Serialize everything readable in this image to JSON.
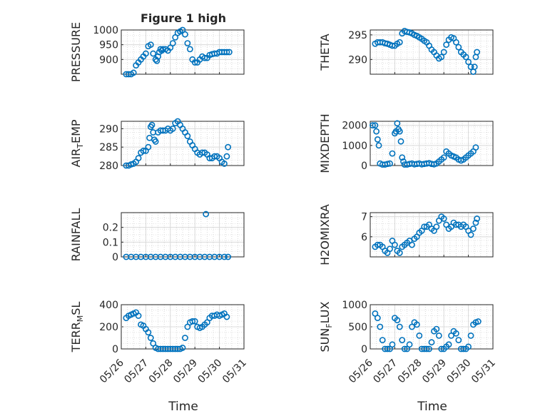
{
  "title": "Figure 1 high",
  "xlabel": "Time",
  "marker_color": "#0072BD",
  "x_ticks": [
    "05/26",
    "05/27",
    "05/28",
    "05/29",
    "05/30",
    "05/31"
  ],
  "chart_data": [
    {
      "type": "scatter",
      "ylabel": "PRESSURE",
      "ylim": [
        850,
        1000
      ],
      "yticks": [
        "900",
        "950",
        "1000"
      ],
      "x": [
        0.2,
        0.3,
        0.4,
        0.5,
        0.6,
        0.7,
        0.8,
        0.9,
        1.0,
        1.1,
        1.2,
        1.3,
        1.4,
        1.45,
        1.5,
        1.55,
        1.6,
        1.65,
        1.7,
        1.8,
        1.9,
        2.0,
        2.1,
        2.2,
        2.3,
        2.4,
        2.5,
        2.6,
        2.7,
        2.8,
        2.9,
        3.0,
        3.1,
        3.2,
        3.3,
        3.4,
        3.5,
        3.6,
        3.7,
        3.8,
        3.9,
        4.0,
        4.1,
        4.2,
        4.3,
        4.4
      ],
      "y": [
        850,
        850,
        850,
        855,
        880,
        890,
        900,
        910,
        920,
        945,
        950,
        920,
        900,
        895,
        910,
        925,
        935,
        930,
        935,
        935,
        930,
        940,
        955,
        975,
        990,
        995,
        1000,
        985,
        955,
        935,
        900,
        890,
        890,
        900,
        910,
        905,
        905,
        915,
        918,
        920,
        920,
        925,
        925,
        925,
        925,
        925
      ]
    },
    {
      "type": "scatter",
      "ylabel": "THETA",
      "ylim": [
        287,
        296
      ],
      "yticks": [
        "290",
        "295"
      ],
      "x": [
        0.2,
        0.3,
        0.4,
        0.5,
        0.6,
        0.7,
        0.8,
        0.9,
        1.0,
        1.1,
        1.2,
        1.3,
        1.4,
        1.5,
        1.6,
        1.7,
        1.8,
        1.9,
        2.0,
        2.1,
        2.2,
        2.3,
        2.4,
        2.5,
        2.6,
        2.7,
        2.8,
        2.9,
        3.0,
        3.1,
        3.2,
        3.3,
        3.4,
        3.5,
        3.6,
        3.7,
        3.8,
        3.9,
        4.0,
        4.1,
        4.2,
        4.25,
        4.3,
        4.35
      ],
      "y": [
        293.2,
        293.5,
        293.5,
        293.5,
        293.3,
        293.2,
        293,
        292.8,
        292.8,
        293.2,
        293.5,
        295.3,
        295.8,
        295.6,
        295.5,
        295.3,
        295,
        294.8,
        294.5,
        294.2,
        293.8,
        293.5,
        292.8,
        292,
        291.5,
        290.8,
        290.2,
        290.5,
        291.5,
        293,
        294,
        294.5,
        294.3,
        293.5,
        292.5,
        291.5,
        291,
        290.5,
        289.5,
        288.5,
        287.5,
        288.5,
        290.5,
        291.5
      ]
    },
    {
      "type": "scatter",
      "ylabel": "AIR_TEMP",
      "ylim": [
        280,
        292
      ],
      "yticks": [
        "280",
        "285",
        "290"
      ],
      "x": [
        0.2,
        0.3,
        0.4,
        0.5,
        0.6,
        0.7,
        0.8,
        0.9,
        1.0,
        1.1,
        1.15,
        1.2,
        1.25,
        1.3,
        1.35,
        1.4,
        1.5,
        1.6,
        1.7,
        1.8,
        1.9,
        2.0,
        2.1,
        2.2,
        2.3,
        2.4,
        2.5,
        2.6,
        2.7,
        2.8,
        2.9,
        3.0,
        3.1,
        3.2,
        3.3,
        3.4,
        3.5,
        3.6,
        3.7,
        3.8,
        3.9,
        4.0,
        4.1,
        4.2,
        4.3,
        4.35
      ],
      "y": [
        280,
        280,
        280.3,
        280.5,
        281,
        282,
        283.5,
        284,
        284,
        285,
        287.5,
        290.5,
        291,
        289,
        287,
        286.5,
        289,
        289.5,
        289.5,
        289.5,
        290,
        289.5,
        290,
        291.5,
        292,
        291,
        290,
        289,
        288,
        286.5,
        285.5,
        284.5,
        283.5,
        283,
        283.5,
        283.5,
        283,
        282,
        282,
        282.5,
        282.5,
        282,
        281,
        280.5,
        282.5,
        285
      ]
    },
    {
      "type": "scatter",
      "ylabel": "MIXDEPTH",
      "ylim": [
        0,
        2200
      ],
      "yticks": [
        "0",
        "1000",
        "2000"
      ],
      "x": [
        0.1,
        0.2,
        0.25,
        0.3,
        0.35,
        0.4,
        0.5,
        0.6,
        0.7,
        0.8,
        0.9,
        1.0,
        1.05,
        1.1,
        1.15,
        1.2,
        1.25,
        1.3,
        1.35,
        1.4,
        1.5,
        1.6,
        1.7,
        1.8,
        1.9,
        2.0,
        2.1,
        2.2,
        2.3,
        2.4,
        2.5,
        2.6,
        2.7,
        2.8,
        2.9,
        3.0,
        3.1,
        3.2,
        3.3,
        3.4,
        3.5,
        3.6,
        3.7,
        3.8,
        3.9,
        4.0,
        4.1,
        4.2,
        4.3
      ],
      "y": [
        2000,
        2000,
        1700,
        1300,
        1000,
        100,
        50,
        50,
        80,
        100,
        600,
        1600,
        1700,
        2100,
        1800,
        1700,
        1200,
        400,
        200,
        50,
        50,
        80,
        100,
        60,
        80,
        100,
        60,
        80,
        100,
        120,
        80,
        60,
        100,
        200,
        300,
        400,
        700,
        600,
        500,
        450,
        400,
        300,
        250,
        300,
        400,
        500,
        600,
        700,
        900
      ]
    },
    {
      "type": "scatter",
      "ylabel": "RAINFALL",
      "ylim": [
        0,
        0.3
      ],
      "yticks": [
        "0",
        "0.1",
        "0.2"
      ],
      "x": [
        0.2,
        0.4,
        0.6,
        0.8,
        1.0,
        1.2,
        1.4,
        1.6,
        1.8,
        2.0,
        2.2,
        2.4,
        2.6,
        2.8,
        3.0,
        3.2,
        3.4,
        3.45,
        3.6,
        3.8,
        4.0,
        4.2,
        4.35
      ],
      "y": [
        0,
        0,
        0,
        0,
        0,
        0,
        0,
        0,
        0,
        0,
        0,
        0,
        0,
        0,
        0,
        0,
        0,
        0.29,
        0,
        0,
        0,
        0,
        0
      ]
    },
    {
      "type": "scatter",
      "ylabel": "H2OMIXRA",
      "ylim": [
        5,
        7.2
      ],
      "yticks": [
        "6",
        "7"
      ],
      "x": [
        0.2,
        0.3,
        0.4,
        0.5,
        0.6,
        0.7,
        0.8,
        0.9,
        1.0,
        1.1,
        1.2,
        1.3,
        1.4,
        1.5,
        1.6,
        1.7,
        1.8,
        1.9,
        2.0,
        2.1,
        2.2,
        2.3,
        2.4,
        2.5,
        2.6,
        2.7,
        2.8,
        2.9,
        3.0,
        3.1,
        3.2,
        3.3,
        3.4,
        3.5,
        3.6,
        3.7,
        3.8,
        3.9,
        4.0,
        4.1,
        4.2,
        4.3,
        4.35
      ],
      "y": [
        5.5,
        5.6,
        5.6,
        5.5,
        5.3,
        5.2,
        5.4,
        5.8,
        5.6,
        5.3,
        5.2,
        5.5,
        5.6,
        5.7,
        5.8,
        5.6,
        5.9,
        6,
        6.2,
        6.3,
        6.5,
        6.5,
        6.6,
        6.4,
        6.3,
        6.5,
        6.8,
        7,
        6.9,
        6.6,
        6.4,
        6.5,
        6.7,
        6.6,
        6.6,
        6.5,
        6.6,
        6.5,
        6.3,
        6.1,
        6.4,
        6.7,
        6.9
      ]
    },
    {
      "type": "scatter",
      "ylabel": "TERR_MSL",
      "ylim": [
        0,
        400
      ],
      "yticks": [
        "0",
        "200",
        "400"
      ],
      "x": [
        0.2,
        0.3,
        0.4,
        0.5,
        0.6,
        0.7,
        0.8,
        0.9,
        1.0,
        1.1,
        1.2,
        1.3,
        1.4,
        1.5,
        1.6,
        1.7,
        1.8,
        1.9,
        2.0,
        2.1,
        2.2,
        2.3,
        2.4,
        2.5,
        2.6,
        2.7,
        2.8,
        2.9,
        3.0,
        3.1,
        3.2,
        3.3,
        3.4,
        3.5,
        3.6,
        3.7,
        3.8,
        3.9,
        4.0,
        4.1,
        4.2,
        4.3
      ],
      "y": [
        280,
        300,
        310,
        320,
        330,
        300,
        220,
        210,
        180,
        150,
        100,
        50,
        10,
        0,
        0,
        0,
        0,
        0,
        0,
        0,
        0,
        0,
        0,
        10,
        100,
        200,
        240,
        250,
        250,
        200,
        190,
        200,
        220,
        240,
        280,
        300,
        300,
        310,
        300,
        310,
        320,
        290
      ]
    },
    {
      "type": "scatter",
      "ylabel": "SUN_FLUX",
      "ylim": [
        0,
        1000
      ],
      "yticks": [
        "0",
        "500",
        "1000"
      ],
      "x": [
        0.2,
        0.3,
        0.4,
        0.5,
        0.6,
        0.7,
        0.8,
        0.9,
        1.0,
        1.1,
        1.2,
        1.3,
        1.4,
        1.5,
        1.6,
        1.7,
        1.8,
        1.9,
        2.0,
        2.1,
        2.2,
        2.3,
        2.4,
        2.5,
        2.6,
        2.7,
        2.8,
        2.9,
        3.0,
        3.1,
        3.2,
        3.3,
        3.4,
        3.5,
        3.6,
        3.7,
        3.8,
        3.9,
        4.0,
        4.1,
        4.2,
        4.3,
        4.4
      ],
      "y": [
        800,
        700,
        500,
        200,
        0,
        0,
        0,
        100,
        700,
        650,
        500,
        200,
        0,
        0,
        100,
        500,
        600,
        550,
        300,
        0,
        0,
        0,
        0,
        150,
        400,
        450,
        300,
        0,
        0,
        50,
        100,
        300,
        400,
        350,
        200,
        0,
        0,
        0,
        50,
        300,
        550,
        600,
        620
      ]
    }
  ]
}
